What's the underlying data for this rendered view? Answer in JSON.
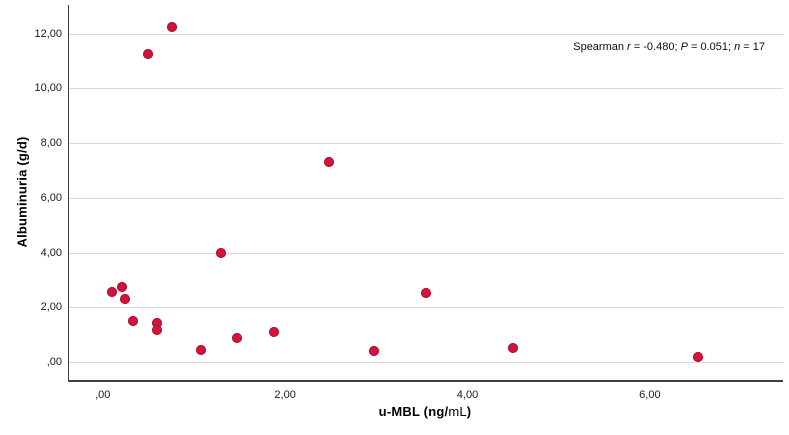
{
  "figure": {
    "background": "#ffffff"
  },
  "chart_data": {
    "type": "scatter",
    "title": "",
    "xlabel": "u-MBL (ng/mL)",
    "ylabel": "Albuminuria (g/d)",
    "xlabel_parts": {
      "pre": "u-MBL (ng/",
      "ml": "mL",
      "post": ")"
    },
    "annotation": {
      "text": "Spearman r = -0.480; P = 0.051; n = 17",
      "parts": [
        "Spearman ",
        "r",
        " = -0.480; ",
        "P",
        " = 0.051; ",
        "n",
        " = 17"
      ],
      "spearman_r": "-0.480",
      "p_value": "0.051",
      "n": "17"
    },
    "x_ticks": [
      0,
      2,
      4,
      6
    ],
    "x_tick_labels": [
      ",00",
      "2,00",
      "4,00",
      "6,00"
    ],
    "y_ticks": [
      0,
      2,
      4,
      6,
      8,
      10,
      12
    ],
    "y_tick_labels": [
      ",00",
      "2,00",
      "4,00",
      "6,00",
      "8,00",
      "10,00",
      "12,00"
    ],
    "xlim": [
      -0.37,
      7.46
    ],
    "ylim": [
      -0.66,
      13.05
    ],
    "grid": "horizontal-only",
    "legend": "none",
    "point_color": "#d0143c",
    "point_border_color": "#ad0f33",
    "gridline_color": "#d9d9d9",
    "axis_color": "#404040",
    "points": [
      {
        "x": 0.1,
        "y": 2.55
      },
      {
        "x": 0.21,
        "y": 2.75
      },
      {
        "x": 0.24,
        "y": 2.3
      },
      {
        "x": 0.33,
        "y": 1.5
      },
      {
        "x": 0.5,
        "y": 11.25
      },
      {
        "x": 0.6,
        "y": 1.43
      },
      {
        "x": 0.6,
        "y": 1.17
      },
      {
        "x": 0.76,
        "y": 12.25
      },
      {
        "x": 1.08,
        "y": 0.44
      },
      {
        "x": 1.3,
        "y": 4.0
      },
      {
        "x": 1.47,
        "y": 0.88
      },
      {
        "x": 1.88,
        "y": 1.1
      },
      {
        "x": 2.48,
        "y": 7.3
      },
      {
        "x": 2.97,
        "y": 0.4
      },
      {
        "x": 3.54,
        "y": 2.52
      },
      {
        "x": 4.5,
        "y": 0.51
      },
      {
        "x": 6.53,
        "y": 0.18
      }
    ]
  }
}
